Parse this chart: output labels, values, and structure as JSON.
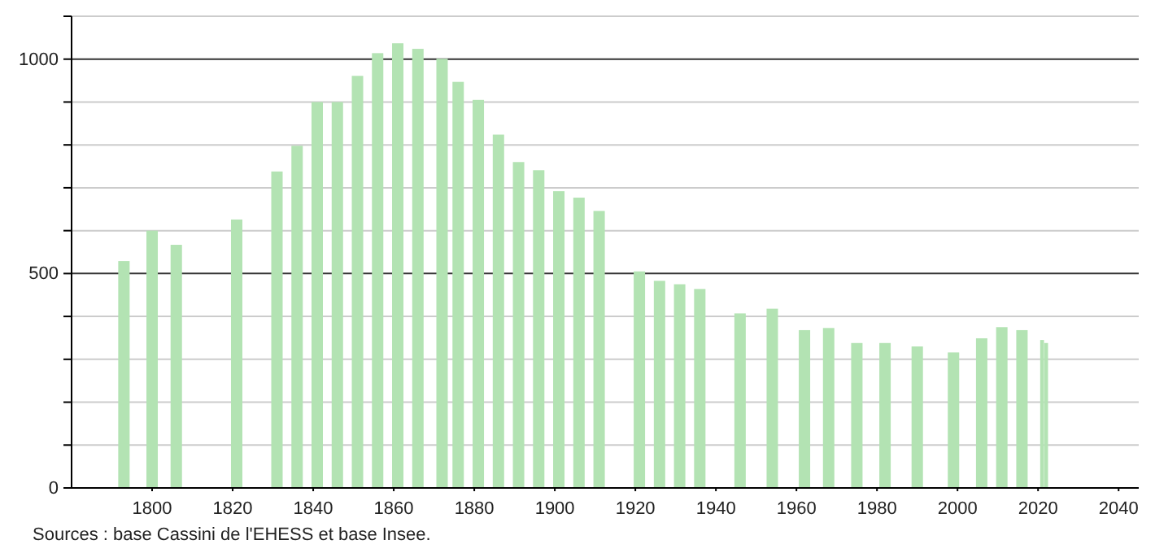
{
  "chart_data": {
    "type": "bar",
    "color": "#b3e3b3",
    "x": [
      1793,
      1800,
      1806,
      1821,
      1831,
      1836,
      1841,
      1846,
      1851,
      1856,
      1861,
      1866,
      1872,
      1876,
      1881,
      1886,
      1891,
      1896,
      1901,
      1906,
      1911,
      1921,
      1926,
      1931,
      1936,
      1946,
      1954,
      1962,
      1968,
      1975,
      1982,
      1990,
      1999,
      2006,
      2011,
      2016,
      2021,
      2022
    ],
    "values": [
      529,
      600,
      567,
      626,
      738,
      798,
      900,
      900,
      961,
      1014,
      1037,
      1024,
      1001,
      947,
      905,
      824,
      760,
      741,
      692,
      677,
      646,
      505,
      483,
      475,
      464,
      407,
      418,
      368,
      373,
      338,
      338,
      330,
      316,
      349,
      375,
      368,
      345,
      338
    ],
    "xlim": [
      1780,
      2045
    ],
    "xticks": [
      1800,
      1820,
      1840,
      1860,
      1880,
      1900,
      1920,
      1940,
      1960,
      1980,
      2000,
      2020,
      2040
    ],
    "ylim": [
      0,
      1100
    ],
    "yticks": [
      0,
      {
        "value": 100,
        "label": null
      },
      {
        "value": 200,
        "label": null
      },
      {
        "value": 300,
        "label": null
      },
      {
        "value": 400,
        "label": null
      },
      500,
      {
        "value": 600,
        "label": null
      },
      {
        "value": 700,
        "label": null
      },
      {
        "value": 800,
        "label": null
      },
      {
        "value": 900,
        "label": null
      },
      1000,
      {
        "value": 1100,
        "label": null
      }
    ],
    "grid": "y",
    "annotations": [
      "Sources : base Cassini de l'EHESS et base Insee."
    ]
  }
}
